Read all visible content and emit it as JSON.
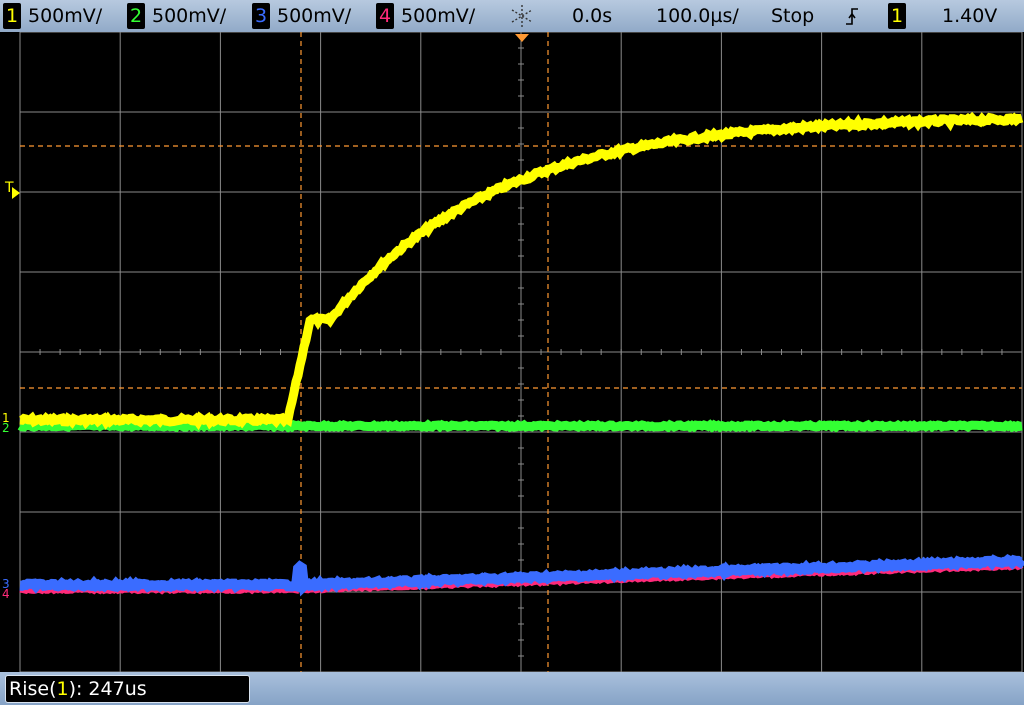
{
  "status_bar": {
    "channels": [
      {
        "number": "1",
        "scale": "500mV/",
        "color": "#ffff00"
      },
      {
        "number": "2",
        "scale": "500mV/",
        "color": "#33ff33"
      },
      {
        "number": "3",
        "scale": "500mV/",
        "color": "#3366ff"
      },
      {
        "number": "4",
        "scale": "500mV/",
        "color": "#ff2a7a"
      }
    ],
    "acquire_icon": "snowflake-icon",
    "time_delay": "0.0s",
    "time_scale": "100.0µs/",
    "run_state": "Stop",
    "trigger_slope_icon": "rising-edge-icon",
    "trigger_source": "1",
    "trigger_level": "1.40V"
  },
  "display": {
    "grid_divisions": {
      "horizontal": 10,
      "vertical": 8
    },
    "ch1_label": "1",
    "ch2_label": "2",
    "ch3_label": "3",
    "ch4_label": "4",
    "trigger_marker_label": "T",
    "colors": {
      "ch1": "#ffff00",
      "ch2": "#33ff33",
      "ch3": "#3a6cff",
      "ch4": "#ff2a7a",
      "grid": "#8a8a8a",
      "cursor": "#ff9933"
    }
  },
  "measurement": {
    "name": "Rise(",
    "source": "1",
    "suffix": "): 247us"
  }
}
